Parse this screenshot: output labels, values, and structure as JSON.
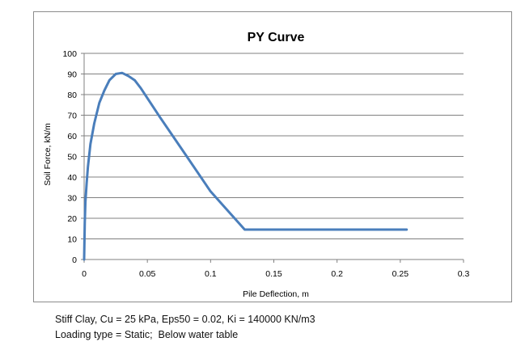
{
  "chart_data": {
    "type": "line",
    "title": "PY Curve",
    "xlabel": "Pile Deflection, m",
    "ylabel": "Soil Force, kN/m",
    "xlim": [
      0,
      0.3
    ],
    "ylim": [
      0,
      100
    ],
    "xticks": [
      "0",
      "0.05",
      "0.1",
      "0.15",
      "0.2",
      "0.25",
      "0.3"
    ],
    "yticks": [
      "0",
      "10",
      "20",
      "30",
      "40",
      "50",
      "60",
      "70",
      "80",
      "90",
      "100"
    ],
    "grid": "horizontal",
    "legend": "none",
    "line_color": "#4a7ebb",
    "series": [
      {
        "x": [
          0,
          0.0005,
          0.001,
          0.002,
          0.003,
          0.005,
          0.008,
          0.012,
          0.016,
          0.02,
          0.025,
          0.03,
          0.035,
          0.04,
          0.045,
          0.06,
          0.08,
          0.1,
          0.127,
          0.16,
          0.2,
          0.255
        ],
        "y": [
          0,
          18,
          28,
          37,
          45,
          56,
          66,
          76,
          82,
          87,
          90,
          90.5,
          89,
          87,
          83,
          69,
          51,
          33,
          14.5,
          14.5,
          14.5,
          14.5
        ]
      }
    ]
  },
  "captions": [
    "Stiff Clay, Cu = 25 kPa, Eps50 = 0.02, Ki = 140000 KN/m3",
    "Loading type = Static;  Below water table"
  ]
}
